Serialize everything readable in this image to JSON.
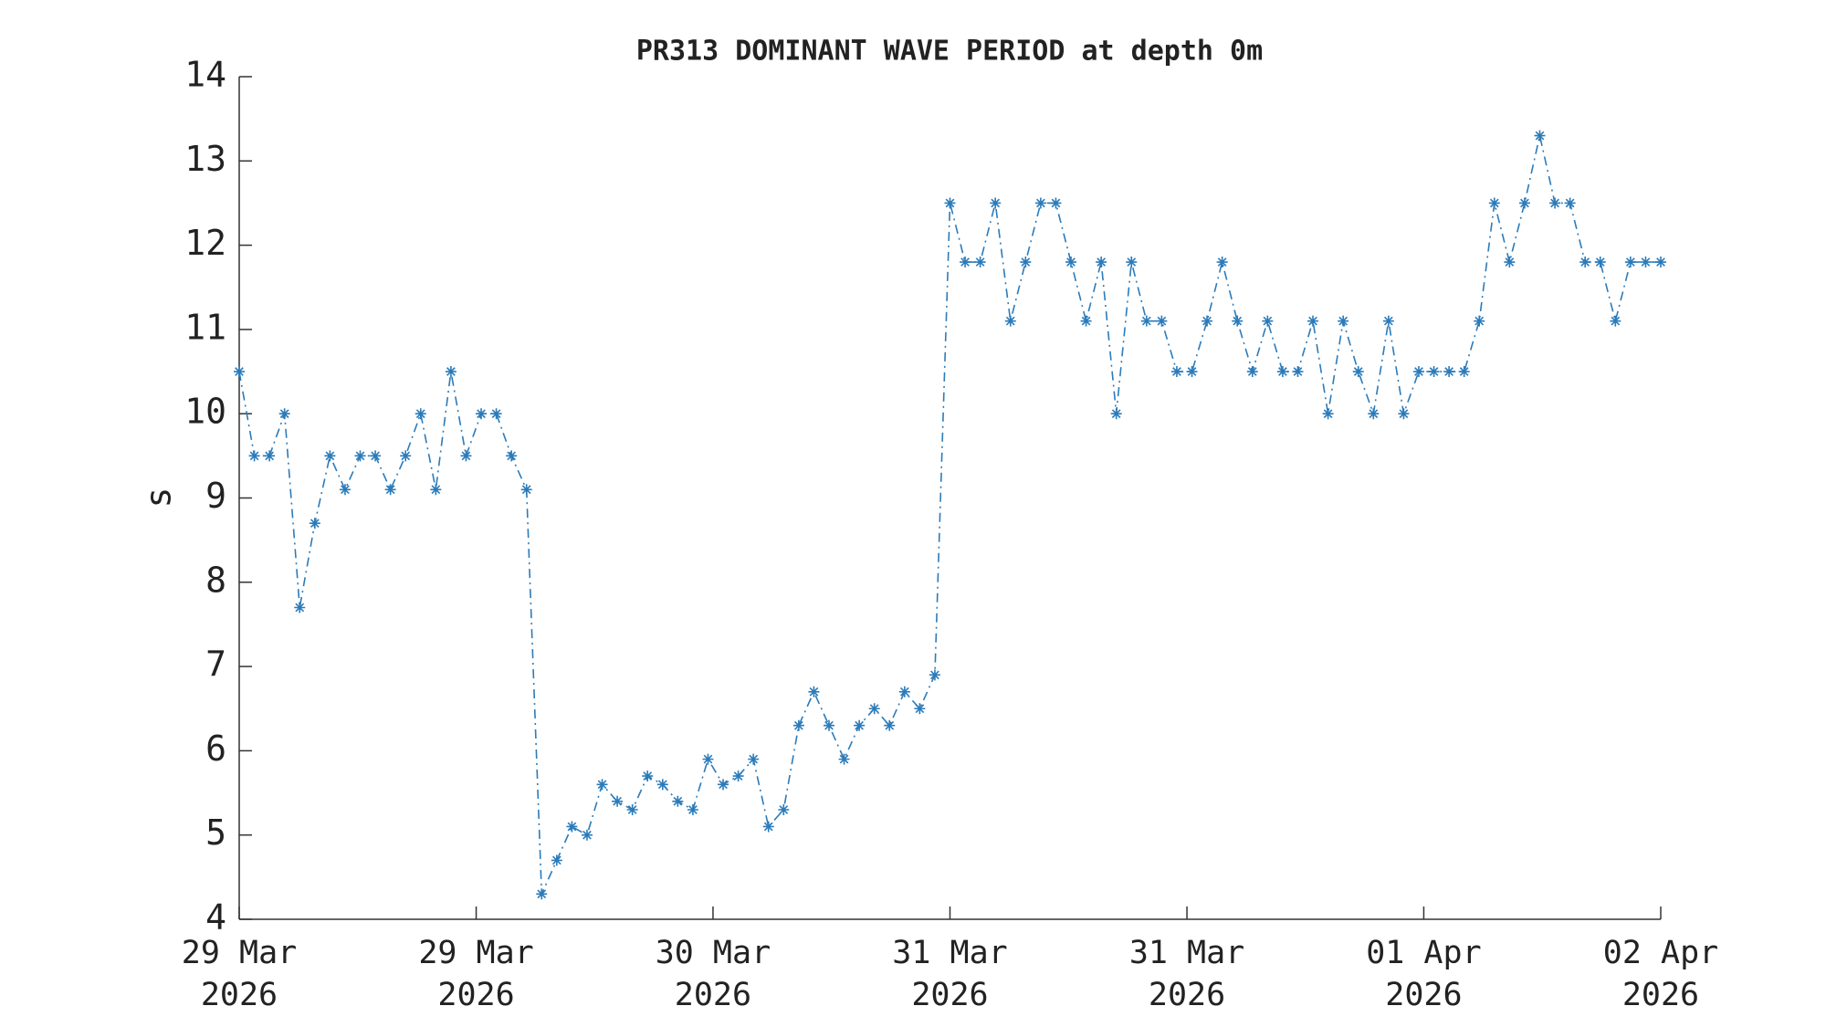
{
  "chart_data": {
    "type": "line",
    "title": "PR313 DOMINANT WAVE PERIOD at depth 0m",
    "ylabel": "s",
    "color": "#2b7bba",
    "marker": "asterisk",
    "x": [
      0,
      1,
      2,
      3,
      4,
      5,
      6,
      7,
      8,
      9,
      10,
      11,
      12,
      13,
      14,
      15,
      16,
      17,
      18,
      19,
      20,
      21,
      22,
      23,
      24,
      25,
      26,
      27,
      28,
      29,
      30,
      31,
      32,
      33,
      34,
      35,
      36,
      37,
      38,
      39,
      40,
      41,
      42,
      43,
      44,
      45,
      46,
      47,
      48,
      49,
      50,
      51,
      52,
      53,
      54,
      55,
      56,
      57,
      58,
      59,
      60,
      61,
      62,
      63,
      64,
      65,
      66,
      67,
      68,
      69,
      70,
      71,
      72,
      73,
      74,
      75,
      76,
      77,
      78,
      79,
      80,
      81,
      82,
      83,
      84,
      85,
      86,
      87,
      88,
      89,
      90,
      91,
      92,
      93,
      94
    ],
    "values": [
      10.5,
      9.5,
      9.5,
      10,
      7.7,
      8.7,
      9.5,
      9.1,
      9.5,
      9.5,
      9.1,
      9.5,
      10,
      9.1,
      10.5,
      9.5,
      10,
      10,
      9.5,
      9.1,
      4.3,
      4.7,
      5.1,
      5.0,
      5.6,
      5.4,
      5.3,
      5.7,
      5.6,
      5.4,
      5.3,
      5.9,
      5.6,
      5.7,
      5.9,
      5.1,
      5.3,
      6.3,
      6.7,
      6.3,
      5.9,
      6.3,
      6.5,
      6.3,
      6.7,
      6.5,
      6.9,
      12.5,
      11.8,
      11.8,
      12.5,
      11.1,
      11.8,
      12.5,
      12.5,
      11.8,
      11.1,
      11.8,
      10,
      11.8,
      11.1,
      11.1,
      10.5,
      10.5,
      11.1,
      11.8,
      11.1,
      10.5,
      11.1,
      10.5,
      10.5,
      11.1,
      10,
      11.1,
      10.5,
      10,
      11.1,
      10,
      10.5,
      10.5,
      10.5,
      10.5,
      11.1,
      12.5,
      11.8,
      12.5,
      13.3,
      12.5,
      12.5,
      11.8,
      11.8,
      11.1,
      11.8,
      11.8,
      11.8
    ],
    "xlim": [
      0,
      94
    ],
    "xticks": [
      {
        "value": 0,
        "label": "29 Mar\n2026"
      },
      {
        "value": 15.67,
        "label": "29 Mar\n2026"
      },
      {
        "value": 31.33,
        "label": "30 Mar\n2026"
      },
      {
        "value": 47,
        "label": "31 Mar\n2026"
      },
      {
        "value": 62.67,
        "label": "31 Mar\n2026"
      },
      {
        "value": 78.33,
        "label": "01 Apr\n2026"
      },
      {
        "value": 94,
        "label": "02 Apr\n2026"
      }
    ],
    "ylim": [
      4,
      14
    ],
    "yticks": [
      4,
      5,
      6,
      7,
      8,
      9,
      10,
      11,
      12,
      13,
      14
    ],
    "grid": false
  }
}
